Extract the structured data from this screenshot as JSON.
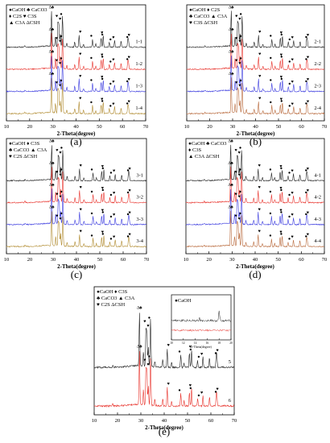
{
  "figure": {
    "panels_order": [
      "a",
      "b",
      "c",
      "d",
      "e"
    ]
  },
  "chart_data": [
    {
      "id": "a",
      "type": "line",
      "caption": "(a)",
      "xlabel": "2-Theta(degree)",
      "ylabel": "",
      "xlim": [
        10,
        70
      ],
      "xticks": [
        10,
        20,
        30,
        40,
        50,
        60,
        70
      ],
      "legend": [
        "●CaOH ♣ CaCO3",
        "♦ C2S ♥ C3S",
        "▲ C3A ΔCSH"
      ],
      "series": [
        {
          "name": "1-1",
          "color": "#222222"
        },
        {
          "name": "1-2",
          "color": "#e8312a"
        },
        {
          "name": "1-3",
          "color": "#3b3bdf"
        },
        {
          "name": "1-4",
          "color": "#b08a2e"
        }
      ]
    },
    {
      "id": "b",
      "type": "line",
      "caption": "(b)",
      "xlabel": "2-Theta(degree)",
      "ylabel": "",
      "xlim": [
        10,
        70
      ],
      "xticks": [
        10,
        20,
        30,
        40,
        50,
        60,
        70
      ],
      "legend": [
        "●CaOH ♦ C2S",
        "♣ CaCO3 ▲ C3A",
        "♥ C3S ΔCSH"
      ],
      "series": [
        {
          "name": "2-1",
          "color": "#222222"
        },
        {
          "name": "2-2",
          "color": "#e8312a"
        },
        {
          "name": "2-3",
          "color": "#3b3bdf"
        },
        {
          "name": "2-4",
          "color": "#b8683a"
        }
      ]
    },
    {
      "id": "c",
      "type": "line",
      "caption": "(c)",
      "xlabel": "2-Theta(degree)",
      "ylabel": "",
      "xlim": [
        10,
        70
      ],
      "xticks": [
        10,
        20,
        30,
        40,
        50,
        60,
        70
      ],
      "legend": [
        "●CaOH ♦ C3S",
        "♣ CaCO3 ▲ C3A",
        "♥ C2S ΔCSH"
      ],
      "series": [
        {
          "name": "3-1",
          "color": "#222222"
        },
        {
          "name": "3-2",
          "color": "#e8312a"
        },
        {
          "name": "3-3",
          "color": "#3b3bdf"
        },
        {
          "name": "3-4",
          "color": "#b08a2e"
        }
      ]
    },
    {
      "id": "d",
      "type": "line",
      "caption": "(d)",
      "xlabel": "2-Theta(degree)",
      "ylabel": "",
      "xlim": [
        10,
        70
      ],
      "xticks": [
        10,
        20,
        30,
        40,
        50,
        60,
        70
      ],
      "legend": [
        "●CaOH ♣ CaCO3",
        "♦ C3S",
        "▲ C3A ΔCSH"
      ],
      "series": [
        {
          "name": "4-1",
          "color": "#222222"
        },
        {
          "name": "4-2",
          "color": "#e8312a"
        },
        {
          "name": "4-3",
          "color": "#3b3bdf"
        },
        {
          "name": "4-4",
          "color": "#b8683a"
        }
      ]
    },
    {
      "id": "e",
      "type": "line",
      "caption": "(e)",
      "xlabel": "2-Theta(degree)",
      "ylabel": "",
      "xlim": [
        10,
        70
      ],
      "xticks": [
        10,
        20,
        30,
        40,
        50,
        60,
        70
      ],
      "legend": [
        "●CaOH ♦ C3S",
        "♣ CaCO3 ▲ C3A",
        "♥ C2S ΔCSH"
      ],
      "inset": {
        "legend": "●CaOH",
        "xlabel": "2-Theta(degree)",
        "xticks": [
          10,
          12,
          14,
          16,
          18,
          20
        ],
        "xlim": [
          10,
          20
        ]
      },
      "series": [
        {
          "name": "5",
          "color": "#222222"
        },
        {
          "name": "6",
          "color": "#e8312a"
        }
      ]
    }
  ],
  "peaks": {
    "CSH": 29.4,
    "CaOH": [
      18.0,
      34.1,
      47.1,
      50.8,
      54.3,
      62.6
    ],
    "CaCO3": [
      29.4,
      36.0,
      39.4,
      43.2,
      48.5
    ],
    "C3S": [
      32.2,
      32.6,
      34.3,
      41.3,
      51.7,
      56.6,
      62.3
    ],
    "C2S": [
      31.1,
      32.1,
      41.2
    ],
    "C3A": [
      33.2,
      47.6,
      59.4
    ]
  }
}
